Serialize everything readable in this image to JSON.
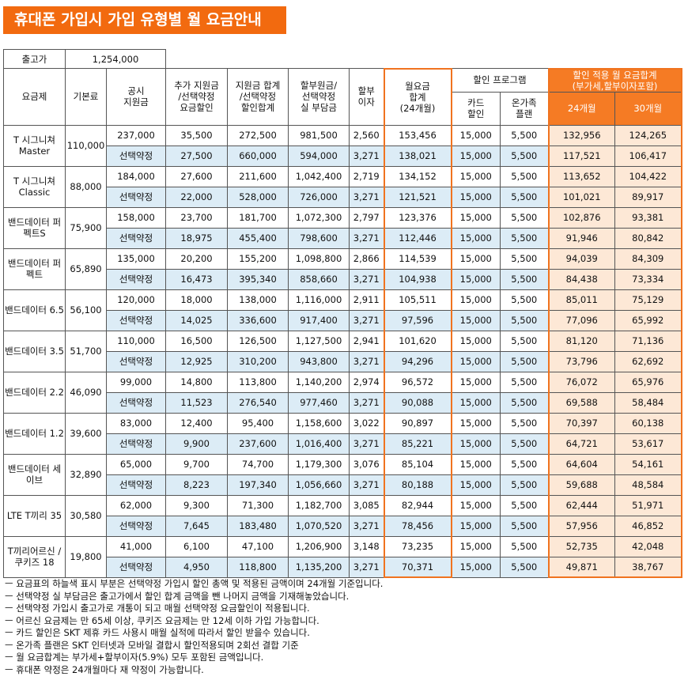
{
  "title": "휴대폰 가입시 가입 유형별 월 요금안내",
  "device_price": {
    "label": "출고가",
    "value": "1,254,000"
  },
  "headers": {
    "plan": "요금제",
    "base": "기본료",
    "public_subsidy": "공시\n지원금",
    "extra_subsidy": "추가 지원금\n/선택약정\n요금할인",
    "subsidy_total": "지원금 합계\n/선택약정\n할인합계",
    "installment": "할부원금/\n선택약정\n실 부담금",
    "interest": "할부\n이자",
    "monthly": "월요금\n합계\n(24개월)",
    "discount_program": "할인 프로그램",
    "card": "카드\n할인",
    "family": "온가족\n플랜",
    "total_group": "할인 적용 월 요금합계\n(부가세,할부이자포함)",
    "m24": "24개월",
    "m30": "30개월"
  },
  "rows": [
    {
      "plan": "T 시그니쳐\nMaster",
      "base": "110,000",
      "a": [
        "237,000",
        "35,500",
        "272,500",
        "981,500",
        "2,560",
        "153,456",
        "15,000",
        "5,500",
        "132,956",
        "124,265"
      ],
      "b": [
        "선택약정",
        "27,500",
        "660,000",
        "594,000",
        "3,271",
        "138,021",
        "15,000",
        "5,500",
        "117,521",
        "106,417"
      ]
    },
    {
      "plan": "T 시그니쳐\nClassic",
      "base": "88,000",
      "a": [
        "184,000",
        "27,600",
        "211,600",
        "1,042,400",
        "2,719",
        "134,152",
        "15,000",
        "5,500",
        "113,652",
        "104,422"
      ],
      "b": [
        "선택약정",
        "22,000",
        "528,000",
        "726,000",
        "3,271",
        "121,521",
        "15,000",
        "5,500",
        "101,021",
        "89,917"
      ]
    },
    {
      "plan": "밴드데이터\n퍼펙트S",
      "base": "75,900",
      "a": [
        "158,000",
        "23,700",
        "181,700",
        "1,072,300",
        "2,797",
        "123,376",
        "15,000",
        "5,500",
        "102,876",
        "93,381"
      ],
      "b": [
        "선택약정",
        "18,975",
        "455,400",
        "798,600",
        "3,271",
        "112,446",
        "15,000",
        "5,500",
        "91,946",
        "80,842"
      ]
    },
    {
      "plan": "밴드데이터\n퍼펙트",
      "base": "65,890",
      "a": [
        "135,000",
        "20,200",
        "155,200",
        "1,098,800",
        "2,866",
        "114,539",
        "15,000",
        "5,500",
        "94,039",
        "84,309"
      ],
      "b": [
        "선택약정",
        "16,473",
        "395,340",
        "858,660",
        "3,271",
        "104,938",
        "15,000",
        "5,500",
        "84,438",
        "73,334"
      ]
    },
    {
      "plan": "밴드데이터\n6.5",
      "base": "56,100",
      "a": [
        "120,000",
        "18,000",
        "138,000",
        "1,116,000",
        "2,911",
        "105,511",
        "15,000",
        "5,500",
        "85,011",
        "75,129"
      ],
      "b": [
        "선택약정",
        "14,025",
        "336,600",
        "917,400",
        "3,271",
        "97,596",
        "15,000",
        "5,500",
        "77,096",
        "65,992"
      ]
    },
    {
      "plan": "밴드데이터\n3.5",
      "base": "51,700",
      "a": [
        "110,000",
        "16,500",
        "126,500",
        "1,127,500",
        "2,941",
        "101,620",
        "15,000",
        "5,500",
        "81,120",
        "71,136"
      ],
      "b": [
        "선택약정",
        "12,925",
        "310,200",
        "943,800",
        "3,271",
        "94,296",
        "15,000",
        "5,500",
        "73,796",
        "62,692"
      ]
    },
    {
      "plan": "밴드데이터\n2.2",
      "base": "46,090",
      "a": [
        "99,000",
        "14,800",
        "113,800",
        "1,140,200",
        "2,974",
        "96,572",
        "15,000",
        "5,500",
        "76,072",
        "65,976"
      ],
      "b": [
        "선택약정",
        "11,523",
        "276,540",
        "977,460",
        "3,271",
        "90,088",
        "15,000",
        "5,500",
        "69,588",
        "58,484"
      ]
    },
    {
      "plan": "밴드데이터\n1.2",
      "base": "39,600",
      "a": [
        "83,000",
        "12,400",
        "95,400",
        "1,158,600",
        "3,022",
        "90,897",
        "15,000",
        "5,500",
        "70,397",
        "60,138"
      ],
      "b": [
        "선택약정",
        "9,900",
        "237,600",
        "1,016,400",
        "3,271",
        "85,221",
        "15,000",
        "5,500",
        "64,721",
        "53,617"
      ]
    },
    {
      "plan": "밴드데이터\n세이브",
      "base": "32,890",
      "a": [
        "65,000",
        "9,700",
        "74,700",
        "1,179,300",
        "3,076",
        "85,104",
        "15,000",
        "5,500",
        "64,604",
        "54,161"
      ],
      "b": [
        "선택약정",
        "8,223",
        "197,340",
        "1,056,660",
        "3,271",
        "80,188",
        "15,000",
        "5,500",
        "59,688",
        "48,584"
      ]
    },
    {
      "plan": "LTE\nT끼리 35",
      "base": "30,580",
      "a": [
        "62,000",
        "9,300",
        "71,300",
        "1,182,700",
        "3,085",
        "82,944",
        "15,000",
        "5,500",
        "62,444",
        "51,971"
      ],
      "b": [
        "선택약정",
        "7,645",
        "183,480",
        "1,070,520",
        "3,271",
        "78,456",
        "15,000",
        "5,500",
        "57,956",
        "46,852"
      ]
    },
    {
      "plan": "T끼리어르신\n/쿠키즈 18",
      "base": "19,800",
      "a": [
        "41,000",
        "6,100",
        "47,100",
        "1,206,900",
        "3,148",
        "73,235",
        "15,000",
        "5,500",
        "52,735",
        "42,048"
      ],
      "b": [
        "선택약정",
        "4,950",
        "118,800",
        "1,135,200",
        "3,271",
        "70,371",
        "15,000",
        "5,500",
        "49,871",
        "38,767"
      ]
    }
  ],
  "notes": [
    "ㅡ 요금표의 하늘색 표시 부분은 선택약정 가입시 할인 총액 및 적용된 금액이며 24개월 기준입니다.",
    "ㅡ 선택약정 실 부담금은 출고가에서 할인 합계 금액을 뺀 나머지 금액을 기재해놓았습니다.",
    "ㅡ 선택약정 가입시 출고가로 개통이 되고 매월 선택약정 요금할인이 적용됩니다.",
    "ㅡ 어르신 요금제는 만 65세 이상, 쿠키즈 요금제는 만 12세 이하 가입 가능합니다.",
    "ㅡ 카드 할인은 SKT 제휴 카드 사용시 매월 실적에 따라서 할인 받을수 있습니다.",
    "ㅡ 온가족 플랜은 SKT 인터넷과 모바일 결합시 할인적용되며 2회선 결합 기준",
    "ㅡ 월 요금합계는 부가세+할부이자(5.9%) 모두 포함된 금액입니다.",
    "ㅡ 휴대폰 약정은 24개월마다 재 약정이 가능합니다."
  ],
  "colors": {
    "accent": "#f26a0f",
    "light_blue": "#dcecf6",
    "peach": "#fde8d6"
  }
}
